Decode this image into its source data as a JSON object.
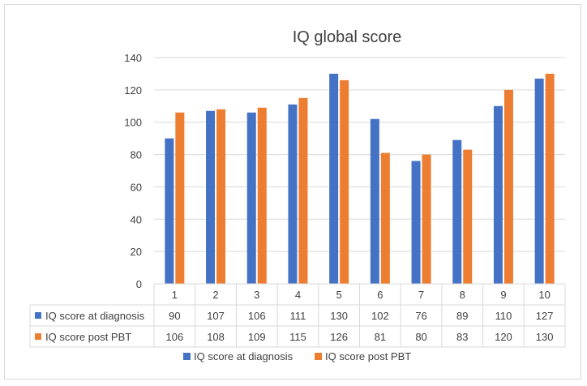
{
  "chart_data": {
    "type": "bar",
    "title": "IQ global score",
    "categories": [
      "1",
      "2",
      "3",
      "4",
      "5",
      "6",
      "7",
      "8",
      "9",
      "10"
    ],
    "series": [
      {
        "name": "IQ score at diagnosis",
        "values": [
          90,
          107,
          106,
          111,
          130,
          102,
          76,
          89,
          110,
          127
        ],
        "color": "#4472C4"
      },
      {
        "name": "IQ score post PBT",
        "values": [
          106,
          108,
          109,
          115,
          126,
          81,
          80,
          83,
          120,
          130
        ],
        "color": "#ED7D31"
      }
    ],
    "ylim": [
      0,
      140
    ],
    "yticks": [
      0,
      20,
      40,
      60,
      80,
      100,
      120,
      140
    ],
    "grid": true,
    "legend": "bottom",
    "data_table": true
  }
}
